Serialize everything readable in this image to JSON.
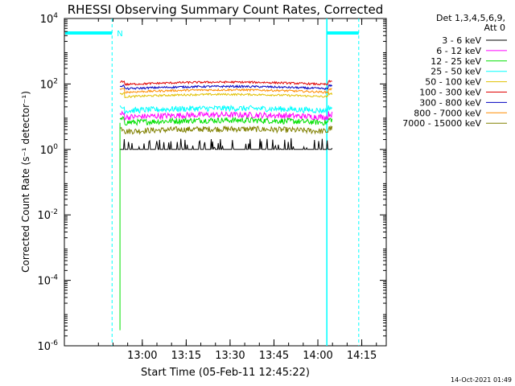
{
  "chart_data": {
    "type": "line",
    "title": "RHESSI Observing Summary Count Rates, Corrected",
    "xlabel": "Start Time (05-Feb-11 12:45:22)",
    "ylabel": "Corrected Count Rate (s⁻¹ detector⁻¹)",
    "yscale": "log",
    "ylim": [
      1e-06,
      10000
    ],
    "yticks": [
      {
        "value": 1e-06,
        "base": "10",
        "exp": "-6"
      },
      {
        "value": 0.0001,
        "base": "10",
        "exp": "-4"
      },
      {
        "value": 0.01,
        "base": "10",
        "exp": "-2"
      },
      {
        "value": 1,
        "base": "10",
        "exp": "0"
      },
      {
        "value": 100,
        "base": "10",
        "exp": "2"
      },
      {
        "value": 10000,
        "base": "10",
        "exp": "4"
      }
    ],
    "x_unit": "minutes after 12:45:22",
    "xlim": [
      -12,
      98
    ],
    "xticks": [
      {
        "value": 14.63,
        "label": "13:00"
      },
      {
        "value": 29.63,
        "label": "13:15"
      },
      {
        "value": 44.63,
        "label": "13:30"
      },
      {
        "value": 59.63,
        "label": "13:45"
      },
      {
        "value": 74.63,
        "label": "14:00"
      },
      {
        "value": 89.63,
        "label": "14:15"
      }
    ],
    "legend_header": [
      "Det 1,3,4,5,6,9,",
      "Att 0"
    ],
    "legend_position": "right",
    "series": [
      {
        "name": "3 - 6 keV",
        "color": "#000000",
        "level": 1.0,
        "start": 7.0,
        "end": 79.5
      },
      {
        "name": "6 - 12 keV",
        "color": "#ff00ff",
        "level": 9.5,
        "start": 7.0,
        "end": 79.5
      },
      {
        "name": "12 - 25 keV",
        "color": "#00e000",
        "level": 6.5,
        "start": 7.0,
        "end": 79.5
      },
      {
        "name": "25 - 50 keV",
        "color": "#00ffff",
        "level": 15,
        "start": 7.0,
        "end": 79.5
      },
      {
        "name": "50 - 100 keV",
        "color": "#e0c000",
        "level": 40,
        "start": 7.0,
        "end": 79.5
      },
      {
        "name": "100 - 300 keV",
        "color": "#e00000",
        "level": 95,
        "start": 7.0,
        "end": 79.5
      },
      {
        "name": "300 - 800 keV",
        "color": "#0000c0",
        "level": 70,
        "start": 7.0,
        "end": 79.5
      },
      {
        "name": "800 - 7000 keV",
        "color": "#ff8c00",
        "level": 55,
        "start": 7.0,
        "end": 79.5
      },
      {
        "name": "7000 - 15000 keV",
        "color": "#808000",
        "level": 3.5,
        "start": 7.0,
        "end": 79.5
      }
    ],
    "green_dropout": {
      "x": 7.0,
      "min": 3e-06
    },
    "night_intervals": [
      [
        -12,
        4.3
      ],
      [
        77.7,
        88.6
      ]
    ],
    "night_marker": "N",
    "night_color": "#00ffff"
  },
  "footer": {
    "timestamp": "14-Oct-2021 01:49"
  }
}
